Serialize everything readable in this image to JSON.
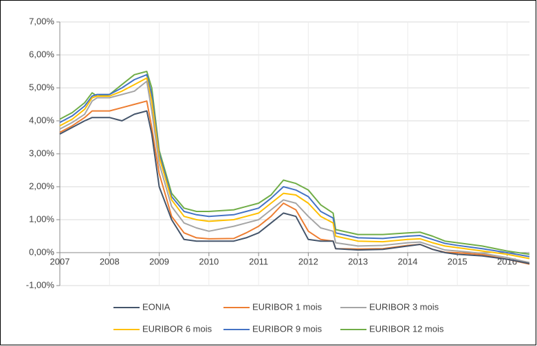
{
  "chart_data": {
    "type": "line",
    "x": [
      2007.0,
      2007.25,
      2007.5,
      2007.65,
      2007.75,
      2008.0,
      2008.25,
      2008.5,
      2008.75,
      2008.85,
      2009.0,
      2009.25,
      2009.5,
      2009.75,
      2010.0,
      2010.5,
      2010.75,
      2011.0,
      2011.25,
      2011.5,
      2011.75,
      2012.0,
      2012.25,
      2012.5,
      2012.55,
      2013.0,
      2013.5,
      2014.0,
      2014.25,
      2014.5,
      2014.75,
      2015.0,
      2015.5,
      2016.0,
      2016.45
    ],
    "series": [
      {
        "name": "EONIA",
        "color": "#44546a",
        "values": [
          3.6,
          3.8,
          4.0,
          4.1,
          4.1,
          4.1,
          4.0,
          4.2,
          4.3,
          3.6,
          2.0,
          1.0,
          0.4,
          0.35,
          0.35,
          0.35,
          0.45,
          0.6,
          0.9,
          1.2,
          1.1,
          0.4,
          0.35,
          0.35,
          0.12,
          0.08,
          0.1,
          0.2,
          0.25,
          0.1,
          0.0,
          -0.05,
          -0.1,
          -0.2,
          -0.33
        ]
      },
      {
        "name": "EURIBOR 1 mois",
        "color": "#ed7d31",
        "values": [
          3.65,
          3.85,
          4.1,
          4.3,
          4.3,
          4.3,
          4.4,
          4.5,
          4.6,
          3.8,
          2.4,
          1.1,
          0.6,
          0.45,
          0.42,
          0.43,
          0.6,
          0.8,
          1.1,
          1.5,
          1.3,
          0.65,
          0.4,
          0.35,
          0.12,
          0.11,
          0.12,
          0.22,
          0.25,
          0.1,
          0.01,
          0.0,
          -0.06,
          -0.2,
          -0.35
        ]
      },
      {
        "name": "EURIBOR 3 mois",
        "color": "#a5a5a5",
        "values": [
          3.75,
          3.95,
          4.2,
          4.6,
          4.7,
          4.7,
          4.8,
          4.9,
          5.2,
          4.3,
          2.7,
          1.4,
          0.9,
          0.75,
          0.65,
          0.8,
          0.9,
          1.0,
          1.3,
          1.6,
          1.5,
          1.1,
          0.75,
          0.65,
          0.3,
          0.2,
          0.22,
          0.3,
          0.32,
          0.2,
          0.08,
          0.05,
          -0.02,
          -0.15,
          -0.3
        ]
      },
      {
        "name": "EURIBOR 6 mois",
        "color": "#ffc000",
        "values": [
          3.85,
          4.05,
          4.35,
          4.7,
          4.75,
          4.75,
          4.9,
          5.1,
          5.3,
          4.6,
          2.9,
          1.6,
          1.1,
          1.0,
          0.95,
          1.0,
          1.1,
          1.2,
          1.5,
          1.8,
          1.75,
          1.5,
          1.1,
          0.9,
          0.5,
          0.35,
          0.33,
          0.4,
          0.42,
          0.3,
          0.2,
          0.15,
          0.05,
          -0.05,
          -0.18
        ]
      },
      {
        "name": "EURIBOR 9 mois",
        "color": "#4472c4",
        "values": [
          3.95,
          4.15,
          4.45,
          4.75,
          4.8,
          4.8,
          5.0,
          5.25,
          5.4,
          4.8,
          3.0,
          1.7,
          1.25,
          1.15,
          1.1,
          1.15,
          1.25,
          1.35,
          1.65,
          2.0,
          1.9,
          1.7,
          1.25,
          1.05,
          0.6,
          0.45,
          0.43,
          0.5,
          0.52,
          0.4,
          0.28,
          0.22,
          0.12,
          0.0,
          -0.12
        ]
      },
      {
        "name": "EURIBOR 12 mois",
        "color": "#70ad47",
        "values": [
          4.05,
          4.25,
          4.55,
          4.85,
          4.75,
          4.8,
          5.1,
          5.4,
          5.5,
          5.0,
          3.1,
          1.8,
          1.35,
          1.25,
          1.25,
          1.3,
          1.4,
          1.5,
          1.75,
          2.2,
          2.1,
          1.9,
          1.45,
          1.2,
          0.7,
          0.55,
          0.55,
          0.6,
          0.62,
          0.5,
          0.35,
          0.3,
          0.2,
          0.05,
          -0.05
        ]
      }
    ],
    "xlim": [
      2007,
      2016.45
    ],
    "xticks": [
      2007,
      2008,
      2009,
      2010,
      2011,
      2012,
      2013,
      2014,
      2015,
      2016
    ],
    "ylim": [
      -1,
      7
    ],
    "yticks": [
      {
        "value": -1,
        "label": "-1,00%"
      },
      {
        "value": 0,
        "label": "0,00%"
      },
      {
        "value": 1,
        "label": "1,00%"
      },
      {
        "value": 2,
        "label": "2,00%"
      },
      {
        "value": 3,
        "label": "3,00%"
      },
      {
        "value": 4,
        "label": "4,00%"
      },
      {
        "value": 5,
        "label": "5,00%"
      },
      {
        "value": 6,
        "label": "6,00%"
      },
      {
        "value": 7,
        "label": "7,00%"
      }
    ],
    "grid": true,
    "legend": "bottom"
  }
}
